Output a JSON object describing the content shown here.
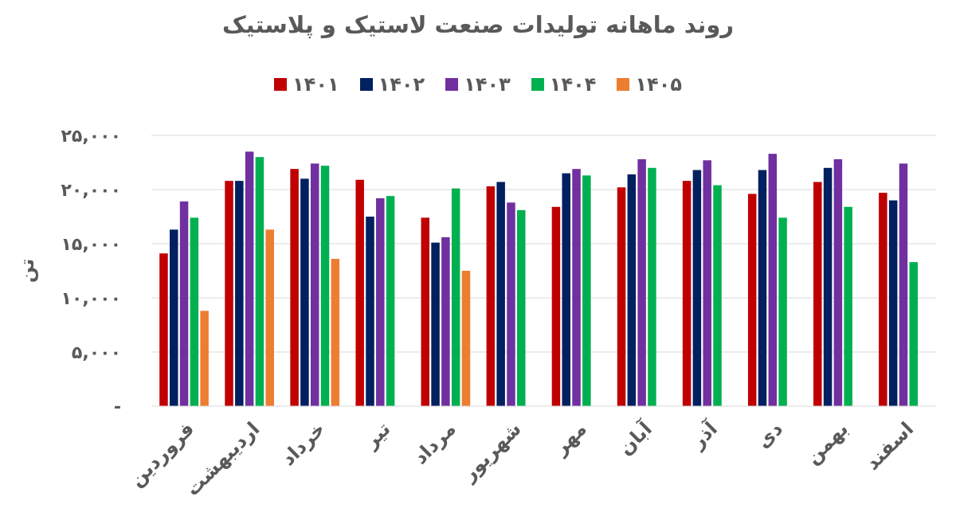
{
  "chart_data": {
    "type": "bar",
    "title": "روند ماهانه تولیدات صنعت لاستیک و پلاستیک",
    "ylabel": "تن",
    "xlabel": "",
    "ylim": [
      0,
      25000
    ],
    "yticks": [
      0,
      5000,
      10000,
      15000,
      20000,
      25000
    ],
    "ytick_labels": [
      "-",
      "۵,۰۰۰",
      "۱۰,۰۰۰",
      "۱۵,۰۰۰",
      "۲۰,۰۰۰",
      "۲۵,۰۰۰"
    ],
    "grid": true,
    "legend_position": "top",
    "categories": [
      "فروردین",
      "اردیبهشت",
      "خرداد",
      "تیر",
      "مرداد",
      "شهریور",
      "مهر",
      "آبان",
      "آذر",
      "دی",
      "بهمن",
      "اسفند"
    ],
    "series": [
      {
        "name": "۱۴۰۱",
        "color": "#c00000",
        "values": [
          14100,
          20800,
          21900,
          20900,
          17400,
          20300,
          18400,
          20200,
          20800,
          19600,
          20700,
          19700
        ]
      },
      {
        "name": "۱۴۰۲",
        "color": "#002060",
        "values": [
          16300,
          20800,
          21000,
          17500,
          15100,
          20700,
          21500,
          21400,
          21800,
          21800,
          22000,
          19000
        ]
      },
      {
        "name": "۱۴۰۳",
        "color": "#7030a0",
        "values": [
          18900,
          23500,
          22400,
          19200,
          15600,
          18800,
          21900,
          22800,
          22700,
          23300,
          22800,
          22400
        ]
      },
      {
        "name": "۱۴۰۴",
        "color": "#00b050",
        "values": [
          17400,
          23000,
          22200,
          19400,
          20100,
          18100,
          21300,
          22000,
          20400,
          17400,
          18400,
          13300
        ]
      },
      {
        "name": "۱۴۰۵",
        "color": "#ed7d31",
        "values": [
          8800,
          16300,
          13600,
          null,
          12500,
          null,
          null,
          null,
          null,
          null,
          null,
          null
        ]
      }
    ]
  }
}
